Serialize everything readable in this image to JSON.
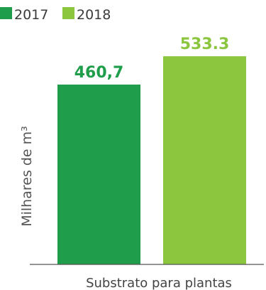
{
  "chart_data": {
    "type": "bar",
    "categories": [
      "Substrato para plantas"
    ],
    "series": [
      {
        "name": "2017",
        "values": [
          460.7
        ],
        "color": "#1f9d4a",
        "label": "460,7"
      },
      {
        "name": "2018",
        "values": [
          533.3
        ],
        "color": "#8cc63f",
        "label": "533.3"
      }
    ],
    "xlabel": "",
    "ylabel": "Milhares de m³",
    "ylim": [
      0,
      590
    ],
    "grid": false,
    "legend_position": "top-left"
  }
}
